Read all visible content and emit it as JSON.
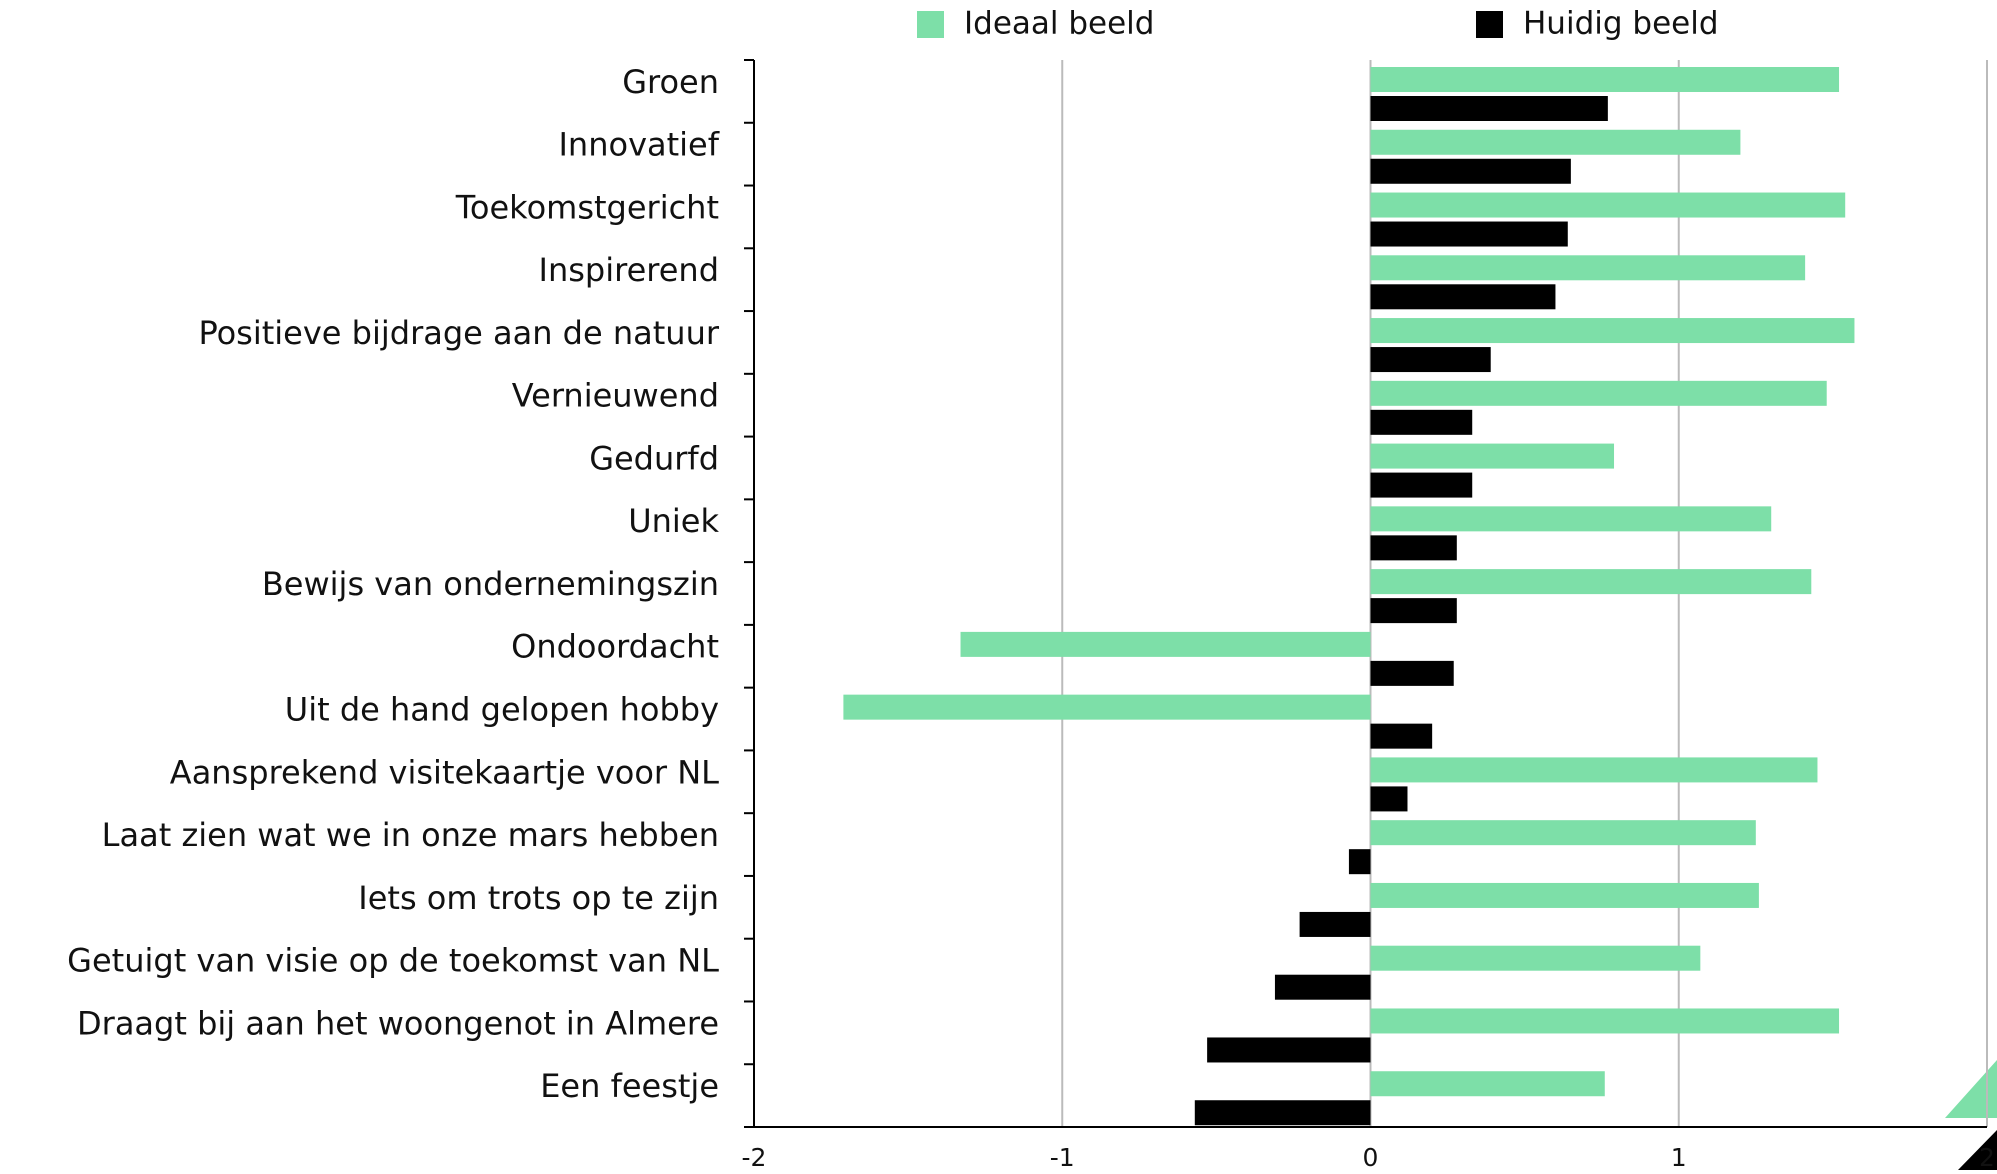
{
  "chart_data": {
    "type": "barh",
    "categories": [
      "Groen",
      "Innovatief",
      "Toekomstgericht",
      "Inspirerend",
      "Positieve bijdrage aan de natuur",
      "Vernieuwend",
      "Gedurfd",
      "Uniek",
      "Bewijs van ondernemingszin",
      "Ondoordacht",
      "Uit de hand gelopen hobby",
      "Aansprekend visitekaartje voor NL",
      "Laat zien wat we in onze mars hebben",
      "Iets om trots op te zijn",
      "Getuigt van visie op de toekomst van NL",
      "Draagt bij aan het woongenot in Almere",
      "Een feestje"
    ],
    "series": [
      {
        "name": "Ideaal beeld",
        "color": "#7ddfa8",
        "values": [
          1.52,
          1.2,
          1.54,
          1.41,
          1.57,
          1.48,
          0.79,
          1.3,
          1.43,
          -1.33,
          -1.71,
          1.45,
          1.25,
          1.26,
          1.07,
          1.52,
          0.76
        ]
      },
      {
        "name": "Huidig beeld",
        "color": "#000000",
        "values": [
          0.77,
          0.65,
          0.64,
          0.6,
          0.39,
          0.33,
          0.33,
          0.28,
          0.28,
          0.27,
          0.2,
          0.12,
          -0.07,
          -0.23,
          -0.31,
          -0.53,
          -0.57
        ]
      }
    ],
    "xlim": [
      -2,
      2
    ],
    "xticks": [
      -2,
      -1,
      0,
      1,
      2
    ],
    "grid": true
  }
}
